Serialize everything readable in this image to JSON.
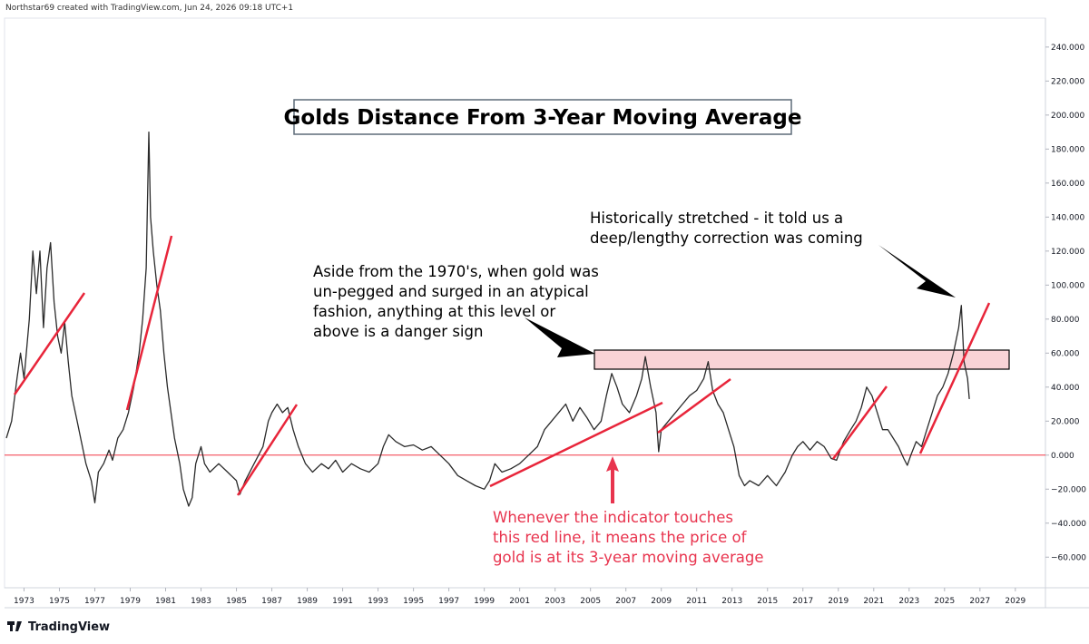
{
  "header": "Northstar69 created with TradingView.com, Jun 24, 2026 09:18 UTC+1",
  "brand": "TradingView",
  "chart_data": {
    "type": "line",
    "title": "Golds Distance From 3-Year Moving Average",
    "color": "#2a2a2a",
    "reference_line": 0,
    "reference_color": "#f23645",
    "grid": false,
    "annotations": [
      {
        "lines": [
          "Historically stretched - it told us a",
          "deep/lengthy correction was coming"
        ],
        "color": "#000000"
      },
      {
        "lines": [
          "Aside from the 1970's, when gold was",
          "un-pegged and surged in an atypical",
          "fashion, anything at this level or",
          "above is a danger sign"
        ],
        "color": "#000000"
      },
      {
        "lines": [
          "Whenever the indicator touches",
          "this red line, it means the price of",
          "gold is at its 3-year moving average"
        ],
        "color": "#e8344e"
      }
    ],
    "xlim": [
      1971.9,
      2030.7
    ],
    "ylim": [
      -78,
      257
    ],
    "xticks": [
      1973,
      1975,
      1977,
      1979,
      1981,
      1983,
      1985,
      1987,
      1989,
      1991,
      1993,
      1995,
      1997,
      1999,
      2001,
      2003,
      2005,
      2007,
      2009,
      2011,
      2013,
      2015,
      2017,
      2019,
      2021,
      2023,
      2025,
      2027,
      2029
    ],
    "yticks": [
      {
        "value": 240,
        "label": "240.000"
      },
      {
        "value": 220,
        "label": "220.000"
      },
      {
        "value": 200,
        "label": "200.000"
      },
      {
        "value": 180,
        "label": "180.000"
      },
      {
        "value": 160,
        "label": "160.000"
      },
      {
        "value": 140,
        "label": "140.000"
      },
      {
        "value": 120,
        "label": "120.000"
      },
      {
        "value": 100,
        "label": "100.000"
      },
      {
        "value": 80,
        "label": "80.000"
      },
      {
        "value": 60,
        "label": "60.000"
      },
      {
        "value": 40,
        "label": "40.000"
      },
      {
        "value": 20,
        "label": "20.000"
      },
      {
        "value": 0,
        "label": "0.000"
      },
      {
        "value": -20,
        "label": "−20.000"
      },
      {
        "value": -40,
        "label": "−40.000"
      },
      {
        "value": -60,
        "label": "−60.000"
      }
    ],
    "x": [
      1972.0,
      1972.3,
      1972.6,
      1972.8,
      1973.0,
      1973.3,
      1973.5,
      1973.7,
      1973.9,
      1974.1,
      1974.3,
      1974.5,
      1974.7,
      1974.9,
      1975.1,
      1975.3,
      1975.5,
      1975.7,
      1976.0,
      1976.3,
      1976.5,
      1976.8,
      1977.0,
      1977.2,
      1977.5,
      1977.8,
      1978.0,
      1978.3,
      1978.6,
      1978.9,
      1979.2,
      1979.5,
      1979.7,
      1979.9,
      1980.05,
      1980.15,
      1980.3,
      1980.5,
      1980.7,
      1980.9,
      1981.1,
      1981.3,
      1981.5,
      1981.8,
      1982.0,
      1982.3,
      1982.5,
      1982.7,
      1983.0,
      1983.2,
      1983.5,
      1984.0,
      1984.5,
      1985.0,
      1985.2,
      1985.5,
      1986.0,
      1986.5,
      1986.8,
      1987.0,
      1987.3,
      1987.6,
      1987.9,
      1988.2,
      1988.5,
      1988.9,
      1989.3,
      1989.8,
      1990.2,
      1990.6,
      1991.0,
      1991.5,
      1992.0,
      1992.5,
      1993.0,
      1993.3,
      1993.6,
      1994.0,
      1994.5,
      1995.0,
      1995.5,
      1996.0,
      1996.5,
      1997.0,
      1997.5,
      1998.0,
      1998.5,
      1999.0,
      1999.3,
      1999.6,
      2000.0,
      2000.5,
      2001.0,
      2001.5,
      2002.0,
      2002.4,
      2002.8,
      2003.2,
      2003.6,
      2004.0,
      2004.4,
      2004.8,
      2005.2,
      2005.6,
      2005.9,
      2006.2,
      2006.5,
      2006.8,
      2007.2,
      2007.6,
      2007.9,
      2008.1,
      2008.4,
      2008.7,
      2008.85,
      2009.0,
      2009.4,
      2009.8,
      2010.2,
      2010.6,
      2011.0,
      2011.4,
      2011.65,
      2011.9,
      2012.2,
      2012.5,
      2012.8,
      2013.1,
      2013.4,
      2013.7,
      2014.0,
      2014.5,
      2015.0,
      2015.5,
      2016.0,
      2016.4,
      2016.7,
      2017.0,
      2017.4,
      2017.8,
      2018.2,
      2018.6,
      2018.9,
      2019.3,
      2019.7,
      2020.0,
      2020.3,
      2020.6,
      2020.9,
      2021.2,
      2021.5,
      2021.8,
      2022.1,
      2022.4,
      2022.7,
      2022.9,
      2023.1,
      2023.4,
      2023.7,
      2024.0,
      2024.3,
      2024.6,
      2024.9,
      2025.2,
      2025.5,
      2025.8,
      2025.95,
      2026.1,
      2026.3,
      2026.4
    ],
    "values": [
      10,
      20,
      45,
      60,
      45,
      80,
      120,
      95,
      120,
      75,
      110,
      125,
      90,
      70,
      60,
      78,
      55,
      35,
      20,
      5,
      -5,
      -15,
      -28,
      -10,
      -5,
      3,
      -3,
      10,
      15,
      25,
      40,
      60,
      80,
      110,
      190,
      140,
      120,
      100,
      85,
      60,
      40,
      25,
      10,
      -5,
      -20,
      -30,
      -25,
      -5,
      5,
      -5,
      -10,
      -5,
      -10,
      -15,
      -23,
      -15,
      -5,
      5,
      20,
      25,
      30,
      25,
      28,
      15,
      5,
      -5,
      -10,
      -5,
      -8,
      -3,
      -10,
      -5,
      -8,
      -10,
      -5,
      5,
      12,
      8,
      5,
      6,
      3,
      5,
      0,
      -5,
      -12,
      -15,
      -18,
      -20,
      -15,
      -5,
      -10,
      -8,
      -5,
      0,
      5,
      15,
      20,
      25,
      30,
      20,
      28,
      22,
      15,
      20,
      35,
      48,
      40,
      30,
      25,
      35,
      45,
      58,
      40,
      25,
      2,
      15,
      20,
      25,
      30,
      35,
      38,
      45,
      55,
      38,
      30,
      25,
      15,
      5,
      -12,
      -18,
      -15,
      -18,
      -12,
      -18,
      -10,
      0,
      5,
      8,
      3,
      8,
      5,
      -2,
      -3,
      8,
      15,
      20,
      28,
      40,
      35,
      25,
      15,
      15,
      10,
      5,
      -2,
      -6,
      0,
      8,
      5,
      15,
      25,
      35,
      40,
      48,
      60,
      75,
      88,
      55,
      45,
      33
    ]
  }
}
